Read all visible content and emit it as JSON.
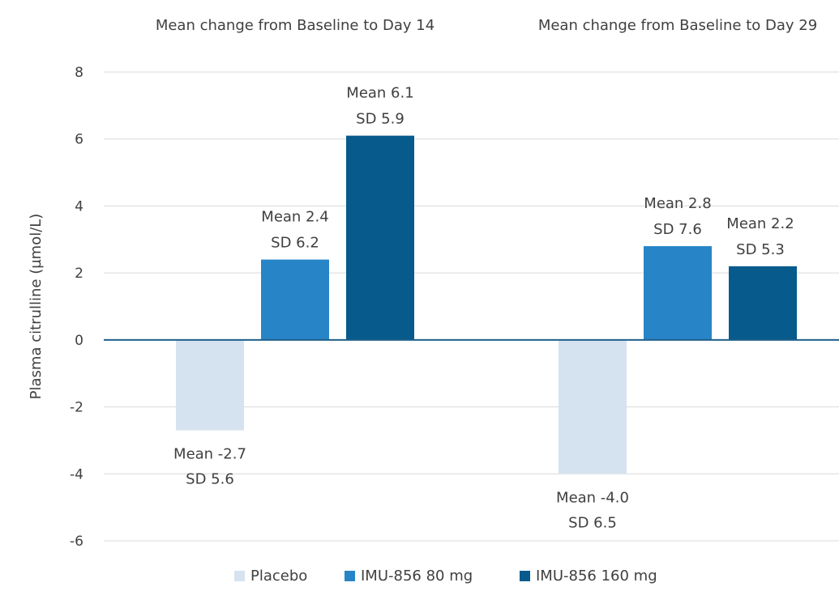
{
  "chart_data": {
    "type": "bar",
    "ylabel": "Plasma citrulline (µmol/L)",
    "ylim": [
      -6,
      8
    ],
    "yticks": [
      8,
      6,
      4,
      2,
      0,
      -2,
      -4,
      -6
    ],
    "grid": true,
    "legend_position": "bottom",
    "categories": [
      "Mean change from Baseline to Day 14",
      "Mean change from Baseline to Day 29"
    ],
    "series": [
      {
        "name": "Placebo",
        "color": "#d5e3f0",
        "values": [
          -2.7,
          -4.0
        ],
        "labels": [
          [
            "Mean -2.7",
            "SD 5.6"
          ],
          [
            "Mean -4.0",
            "SD 6.5"
          ]
        ]
      },
      {
        "name": "IMU-856 80 mg",
        "color": "#2785c7",
        "values": [
          2.4,
          2.8
        ],
        "labels": [
          [
            "Mean 2.4",
            "SD 6.2"
          ],
          [
            "Mean 2.8",
            "SD 7.6"
          ]
        ]
      },
      {
        "name": "IMU-856 160 mg",
        "color": "#065a8c",
        "values": [
          6.1,
          2.2
        ],
        "labels": [
          [
            "Mean 6.1",
            "SD 5.9"
          ],
          [
            "Mean 2.2",
            "SD 5.3"
          ]
        ]
      }
    ]
  }
}
